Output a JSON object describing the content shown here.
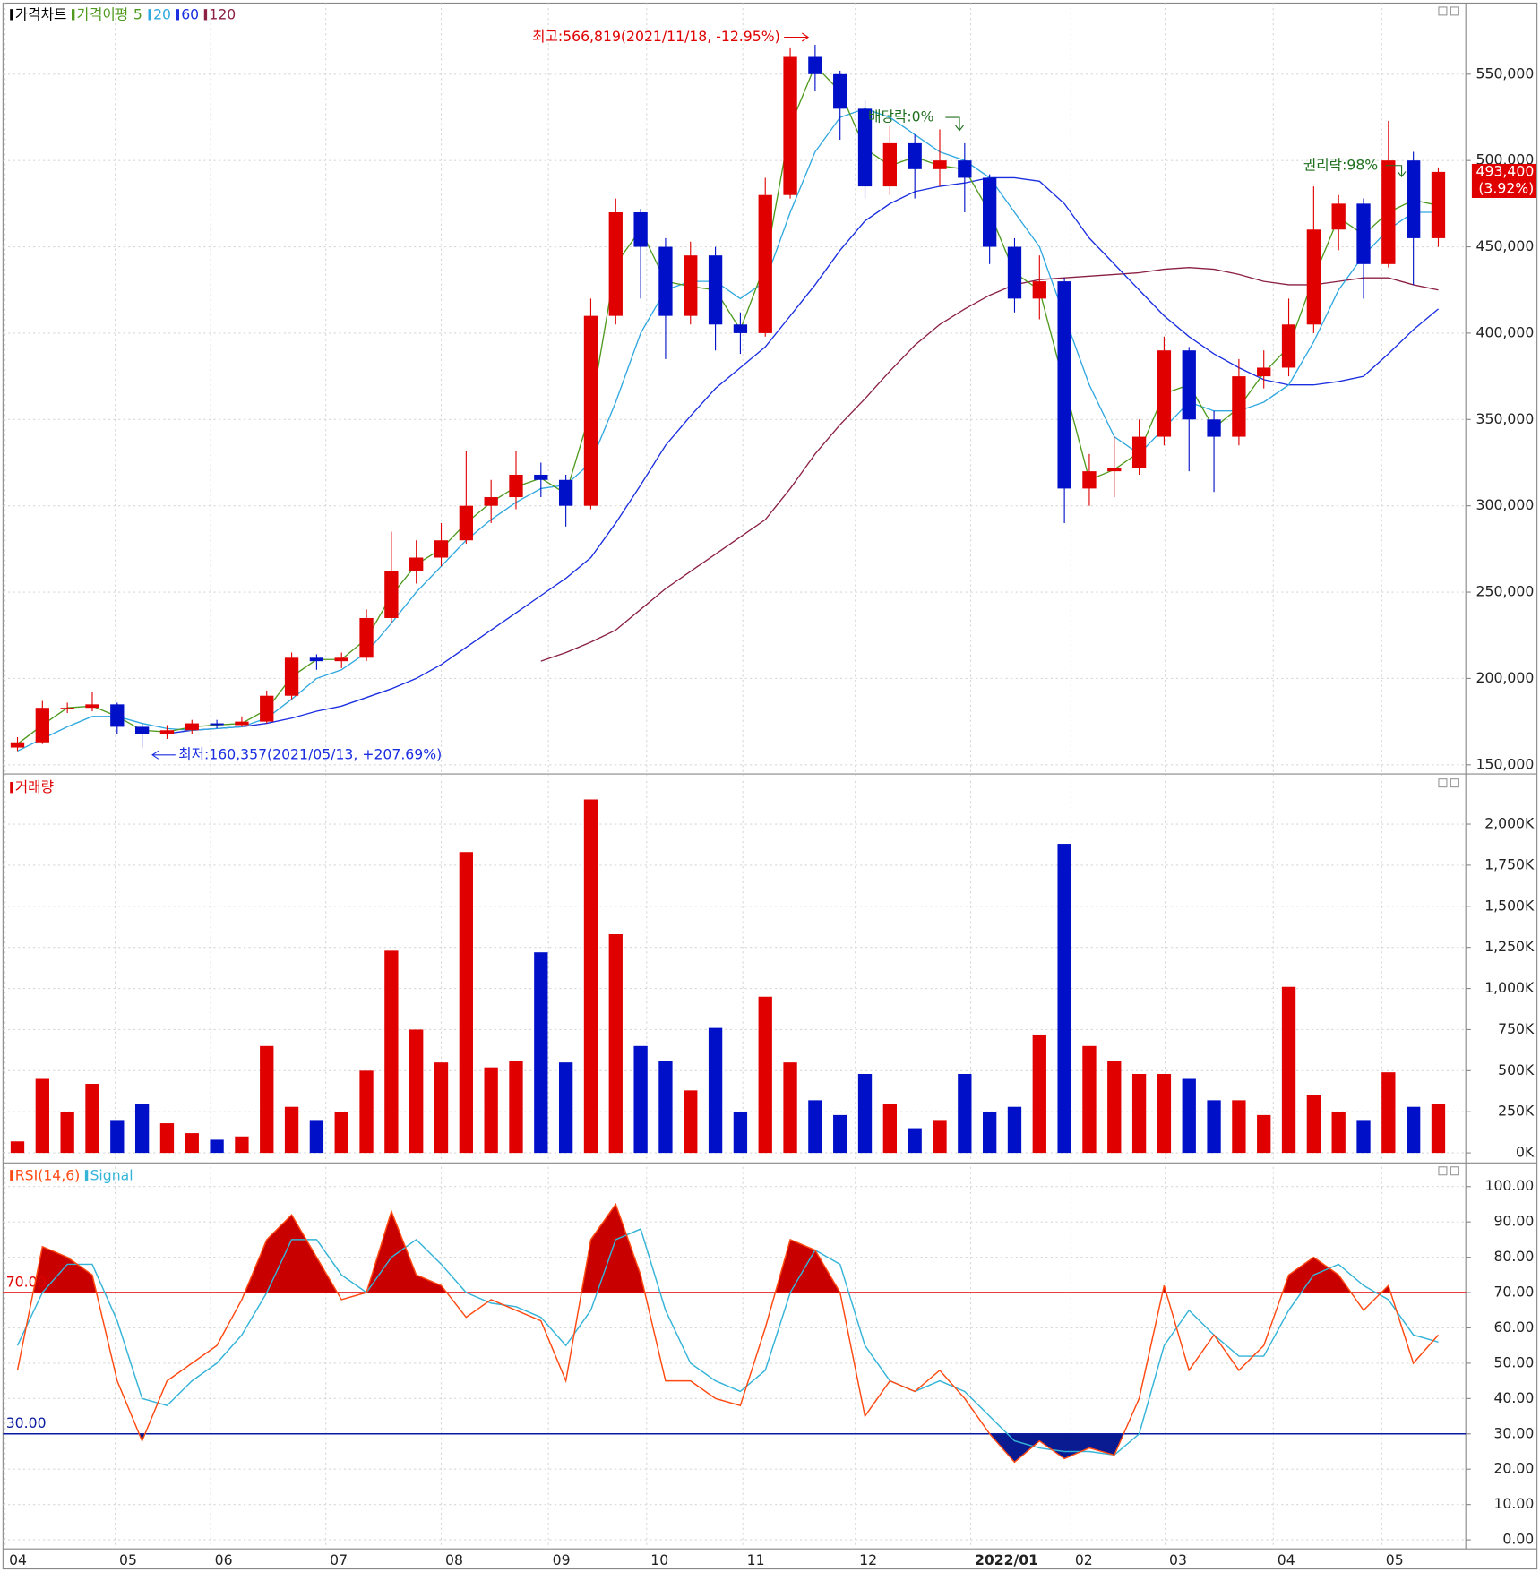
{
  "chart_data": [
    {
      "type": "candlestick",
      "title": "가격차트",
      "ma_title": "가격이평",
      "up_color": "#e00000",
      "down_color": "#0010c8",
      "open": [
        160000,
        163000,
        183000,
        183000,
        185000,
        172000,
        168000,
        170000,
        174000,
        173000,
        175000,
        190000,
        212000,
        210000,
        212000,
        235000,
        262000,
        270000,
        280000,
        300000,
        305000,
        318000,
        315000,
        300000,
        410000,
        470000,
        450000,
        410000,
        445000,
        405000,
        400000,
        480000,
        560000,
        550000,
        530000,
        485000,
        510000,
        495000,
        500000,
        490000,
        450000,
        420000,
        430000,
        310000,
        320000,
        322000,
        340000,
        390000,
        350000,
        340000,
        375000,
        380000,
        405000,
        460000,
        475000,
        440000,
        500000,
        455000
      ],
      "high": [
        166000,
        187000,
        186000,
        192000,
        186000,
        174000,
        173000,
        176000,
        176000,
        178000,
        193000,
        215000,
        214000,
        215000,
        240000,
        285000,
        280000,
        290000,
        332000,
        315000,
        332000,
        325000,
        318000,
        420000,
        478000,
        472000,
        455000,
        453000,
        450000,
        412000,
        490000,
        565000,
        567000,
        552000,
        535000,
        520000,
        515000,
        518000,
        510000,
        492000,
        455000,
        445000,
        432000,
        330000,
        340000,
        350000,
        398000,
        392000,
        355000,
        385000,
        390000,
        420000,
        485000,
        480000,
        478000,
        523000,
        505000,
        496000
      ],
      "low": [
        158000,
        162000,
        180000,
        181000,
        168000,
        160000,
        165000,
        168000,
        171000,
        172000,
        174000,
        188000,
        205000,
        206000,
        210000,
        232000,
        255000,
        265000,
        278000,
        290000,
        298000,
        305000,
        288000,
        298000,
        405000,
        420000,
        385000,
        405000,
        390000,
        388000,
        398000,
        478000,
        540000,
        512000,
        478000,
        480000,
        478000,
        485000,
        470000,
        440000,
        412000,
        408000,
        290000,
        300000,
        305000,
        318000,
        335000,
        320000,
        308000,
        335000,
        368000,
        375000,
        400000,
        448000,
        420000,
        438000,
        428000,
        450000
      ],
      "close": [
        163000,
        183000,
        183000,
        185000,
        172000,
        168000,
        170000,
        174000,
        173000,
        175000,
        190000,
        212000,
        210000,
        212000,
        235000,
        262000,
        270000,
        280000,
        300000,
        305000,
        318000,
        315000,
        300000,
        410000,
        470000,
        450000,
        410000,
        445000,
        405000,
        400000,
        480000,
        560000,
        550000,
        530000,
        485000,
        510000,
        495000,
        500000,
        490000,
        450000,
        420000,
        430000,
        310000,
        320000,
        322000,
        340000,
        390000,
        350000,
        340000,
        375000,
        380000,
        405000,
        460000,
        475000,
        440000,
        500000,
        455000,
        493400
      ],
      "series": [
        {
          "name": "5",
          "color": "#4f9a1e",
          "values": [
            162000,
            173000,
            183000,
            184000,
            178000,
            170000,
            169000,
            172000,
            173000,
            174000,
            182000,
            201000,
            211000,
            211000,
            223000,
            248000,
            266000,
            275000,
            290000,
            302000,
            311000,
            316000,
            307000,
            355000,
            440000,
            460000,
            430000,
            427000,
            425000,
            402000,
            440000,
            520000,
            555000,
            540000,
            507000,
            497000,
            502000,
            497000,
            495000,
            470000,
            435000,
            425000,
            370000,
            315000,
            321000,
            331000,
            365000,
            370000,
            345000,
            357000,
            377000,
            392000,
            432000,
            467000,
            457000,
            470000,
            477000,
            474000
          ]
        },
        {
          "name": "20",
          "color": "#2fa8e0",
          "values": [
            158000,
            165000,
            172000,
            178000,
            178000,
            174000,
            171000,
            170000,
            171000,
            172000,
            177000,
            188000,
            200000,
            205000,
            215000,
            232000,
            250000,
            265000,
            280000,
            292000,
            302000,
            310000,
            312000,
            325000,
            360000,
            400000,
            425000,
            430000,
            430000,
            420000,
            430000,
            470000,
            505000,
            525000,
            530000,
            525000,
            515000,
            505000,
            500000,
            490000,
            470000,
            450000,
            410000,
            370000,
            340000,
            330000,
            345000,
            360000,
            355000,
            355000,
            360000,
            370000,
            395000,
            425000,
            445000,
            460000,
            470000,
            470000
          ]
        },
        {
          "name": "60",
          "color": "#1a2ee0",
          "values": [
            null,
            null,
            null,
            null,
            null,
            null,
            168000,
            170000,
            171000,
            172000,
            174000,
            177000,
            181000,
            184000,
            189000,
            194000,
            200000,
            208000,
            218000,
            228000,
            238000,
            248000,
            258000,
            270000,
            290000,
            312000,
            335000,
            352000,
            368000,
            380000,
            392000,
            410000,
            428000,
            448000,
            465000,
            475000,
            482000,
            485000,
            487000,
            490000,
            490000,
            488000,
            475000,
            455000,
            440000,
            425000,
            410000,
            398000,
            388000,
            380000,
            373000,
            370000,
            370000,
            372000,
            375000,
            388000,
            402000,
            414000
          ]
        },
        {
          "name": "120",
          "color": "#8b2045",
          "values": [
            null,
            null,
            null,
            null,
            null,
            null,
            null,
            null,
            null,
            null,
            null,
            null,
            null,
            null,
            null,
            null,
            null,
            null,
            null,
            null,
            null,
            210000,
            215000,
            221000,
            228000,
            240000,
            252000,
            262000,
            272000,
            282000,
            292000,
            310000,
            330000,
            347000,
            362000,
            378000,
            393000,
            405000,
            414000,
            422000,
            428000,
            431000,
            432000,
            433000,
            434000,
            435000,
            437000,
            438000,
            437000,
            434000,
            430000,
            428000,
            428000,
            430000,
            432000,
            432000,
            428000,
            425000
          ]
        }
      ],
      "ylim": [
        147000,
        590000
      ],
      "yticks": [
        {
          "value": 150000,
          "label": "150,000"
        },
        {
          "value": 200000,
          "label": "200,000"
        },
        {
          "value": 250000,
          "label": "250,000"
        },
        {
          "value": 300000,
          "label": "300,000"
        },
        {
          "value": 350000,
          "label": "350,000"
        },
        {
          "value": 400000,
          "label": "400,000"
        },
        {
          "value": 450000,
          "label": "450,000"
        },
        {
          "value": 500000,
          "label": "500,000"
        },
        {
          "value": 550000,
          "label": "550,000"
        }
      ],
      "last": {
        "value": 493400,
        "label": "493,400"
      },
      "last_change": {
        "value": 3.92,
        "label": "(3.92%)"
      },
      "annotations": [
        {
          "text": "최고:566,819(2021/11/18, -12.95%)",
          "color": "#e00000"
        },
        {
          "text": "최저:160,357(2021/05/13, +207.69%)",
          "color": "#1a2ee0"
        },
        {
          "text": "배당락:0%",
          "color": "#207020"
        },
        {
          "text": "권리락:98%",
          "color": "#207020"
        }
      ]
    },
    {
      "type": "bar",
      "title": "거래량",
      "values": [
        70000,
        450000,
        250000,
        420000,
        200000,
        300000,
        180000,
        120000,
        80000,
        100000,
        650000,
        280000,
        200000,
        250000,
        500000,
        1230000,
        750000,
        550000,
        1830000,
        520000,
        560000,
        1220000,
        550000,
        2150000,
        1330000,
        650000,
        560000,
        380000,
        760000,
        250000,
        950000,
        550000,
        320000,
        230000,
        480000,
        300000,
        150000,
        200000,
        480000,
        250000,
        280000,
        720000,
        1880000,
        650000,
        560000,
        480000,
        480000,
        450000,
        320000,
        320000,
        230000,
        1010000,
        350000,
        250000,
        200000,
        490000,
        280000,
        300000
      ],
      "ylim": [
        0,
        2250000
      ],
      "yticks": [
        {
          "value": 0,
          "label": "0K"
        },
        {
          "value": 250000,
          "label": "250K"
        },
        {
          "value": 500000,
          "label": "500K"
        },
        {
          "value": 750000,
          "label": "750K"
        },
        {
          "value": 1000000,
          "label": "1,000K"
        },
        {
          "value": 1250000,
          "label": "1,250K"
        },
        {
          "value": 1500000,
          "label": "1,500K"
        },
        {
          "value": 1750000,
          "label": "1,750K"
        },
        {
          "value": 2000000,
          "label": "2,000K"
        }
      ]
    },
    {
      "type": "line",
      "series": [
        {
          "name": "RSI(14,6)",
          "color": "#ff4a12",
          "values": [
            48,
            83,
            80,
            75,
            45,
            28,
            45,
            50,
            55,
            68,
            85,
            92,
            80,
            68,
            70,
            93,
            75,
            72,
            63,
            68,
            65,
            62,
            45,
            85,
            95,
            75,
            45,
            45,
            40,
            38,
            60,
            85,
            82,
            70,
            35,
            45,
            42,
            48,
            40,
            30,
            22,
            28,
            23,
            26,
            24,
            40,
            72,
            48,
            58,
            48,
            55,
            75,
            80,
            75,
            65,
            72,
            50,
            58
          ]
        },
        {
          "name": "Signal",
          "color": "#35b4d8",
          "values": [
            55,
            70,
            78,
            78,
            62,
            40,
            38,
            45,
            50,
            58,
            70,
            85,
            85,
            75,
            70,
            80,
            85,
            78,
            70,
            67,
            66,
            63,
            55,
            65,
            85,
            88,
            65,
            50,
            45,
            42,
            48,
            70,
            82,
            78,
            55,
            45,
            42,
            45,
            42,
            35,
            28,
            26,
            25,
            25,
            24,
            30,
            55,
            65,
            58,
            52,
            52,
            65,
            75,
            78,
            72,
            68,
            58,
            56
          ]
        }
      ],
      "levels": [
        {
          "value": 70,
          "label": "70.00",
          "color": "#e00000",
          "fill": "#c80000"
        },
        {
          "value": 30,
          "label": "30.00",
          "color": "#0a1aa0",
          "fill": "#0a1a90"
        }
      ],
      "ylim": [
        0,
        105
      ],
      "yticks": [
        {
          "value": 0,
          "label": "0.00"
        },
        {
          "value": 10,
          "label": "10.00"
        },
        {
          "value": 20,
          "label": "20.00"
        },
        {
          "value": 30,
          "label": "30.00"
        },
        {
          "value": 40,
          "label": "40.00"
        },
        {
          "value": 50,
          "label": "50.00"
        },
        {
          "value": 60,
          "label": "60.00"
        },
        {
          "value": 70,
          "label": "70.00"
        },
        {
          "value": 80,
          "label": "80.00"
        },
        {
          "value": 90,
          "label": "90.00"
        },
        {
          "value": 100,
          "label": "100.00"
        }
      ],
      "xlim": [
        0,
        58
      ],
      "xticks": [
        {
          "value": 0,
          "label": "04"
        },
        {
          "value": 4.42,
          "label": "05"
        },
        {
          "value": 8.25,
          "label": "06"
        },
        {
          "value": 12.87,
          "label": "07"
        },
        {
          "value": 17.5,
          "label": "08"
        },
        {
          "value": 21.8,
          "label": "09"
        },
        {
          "value": 25.74,
          "label": "10"
        },
        {
          "value": 29.6,
          "label": "11"
        },
        {
          "value": 34.11,
          "label": "12"
        },
        {
          "value": 38.74,
          "label": "2022/01"
        },
        {
          "value": 42.76,
          "label": "02"
        },
        {
          "value": 46.54,
          "label": "03"
        },
        {
          "value": 50.88,
          "label": "04"
        },
        {
          "value": 55.23,
          "label": "05"
        }
      ]
    }
  ]
}
